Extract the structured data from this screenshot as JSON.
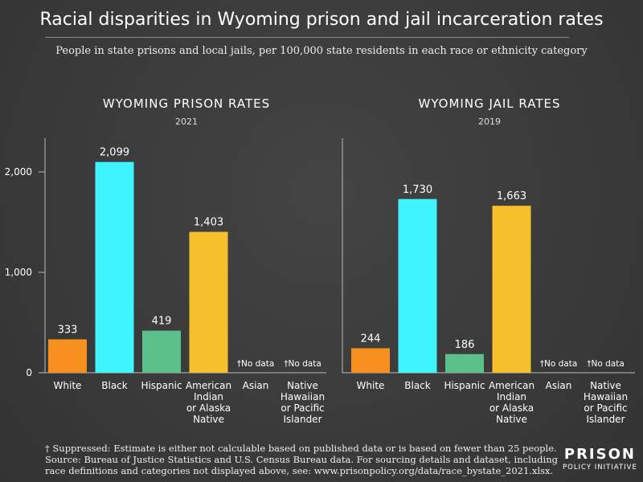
{
  "title": "Racial disparities in Wyoming prison and jail incarceration rates",
  "subtitle": "People in state prisons and local jails, per 100,000 state residents in each race or ethnicity category",
  "footnote": [
    "† Suppressed: Estimate is either not calculable based on published data or is based on fewer than 25 people.",
    "Source: Bureau of Justice Statistics and U.S. Census Bureau data. For sourcing details and dataset, including",
    "race definitions and categories not displayed above, see: www.prisonpolicy.org/data/race_bystate_2021.xlsx."
  ],
  "logo": {
    "line1": "PRISON",
    "line2": "POLICY INITIATIVE"
  },
  "chart_data": [
    {
      "type": "bar",
      "title": "WYOMING PRISON RATES",
      "subtitle": "2021",
      "categories": [
        [
          "White"
        ],
        [
          "Black"
        ],
        [
          "Hispanic"
        ],
        [
          "American",
          "Indian",
          "or Alaska",
          "Native"
        ],
        [
          "Asian"
        ],
        [
          "Native",
          "Hawaiian",
          "or Pacific",
          "Islander"
        ]
      ],
      "values": [
        333,
        2099,
        419,
        1403,
        null,
        null
      ],
      "labels": [
        "333",
        "2,099",
        "419",
        "1,403",
        "†No data",
        "†No data"
      ],
      "colors": [
        "#f7901e",
        "#3ff3ff",
        "#5cc08a",
        "#f5c02c",
        "",
        ""
      ],
      "ylim": [
        0,
        2000
      ],
      "yticks": [
        0,
        1000,
        2000
      ],
      "ytick_labels": [
        "0",
        "1,000",
        "2,000"
      ]
    },
    {
      "type": "bar",
      "title": "WYOMING JAIL RATES",
      "subtitle": "2019",
      "categories": [
        [
          "White"
        ],
        [
          "Black"
        ],
        [
          "Hispanic"
        ],
        [
          "American",
          "Indian",
          "or Alaska",
          "Native"
        ],
        [
          "Asian"
        ],
        [
          "Native",
          "Hawaiian",
          "or Pacific",
          "Islander"
        ]
      ],
      "values": [
        244,
        1730,
        186,
        1663,
        null,
        null
      ],
      "labels": [
        "244",
        "1,730",
        "186",
        "1,663",
        "†No data",
        "†No data"
      ],
      "colors": [
        "#f7901e",
        "#3ff3ff",
        "#5cc08a",
        "#f5c02c",
        "",
        ""
      ],
      "ylim": [
        0,
        2000
      ]
    }
  ]
}
